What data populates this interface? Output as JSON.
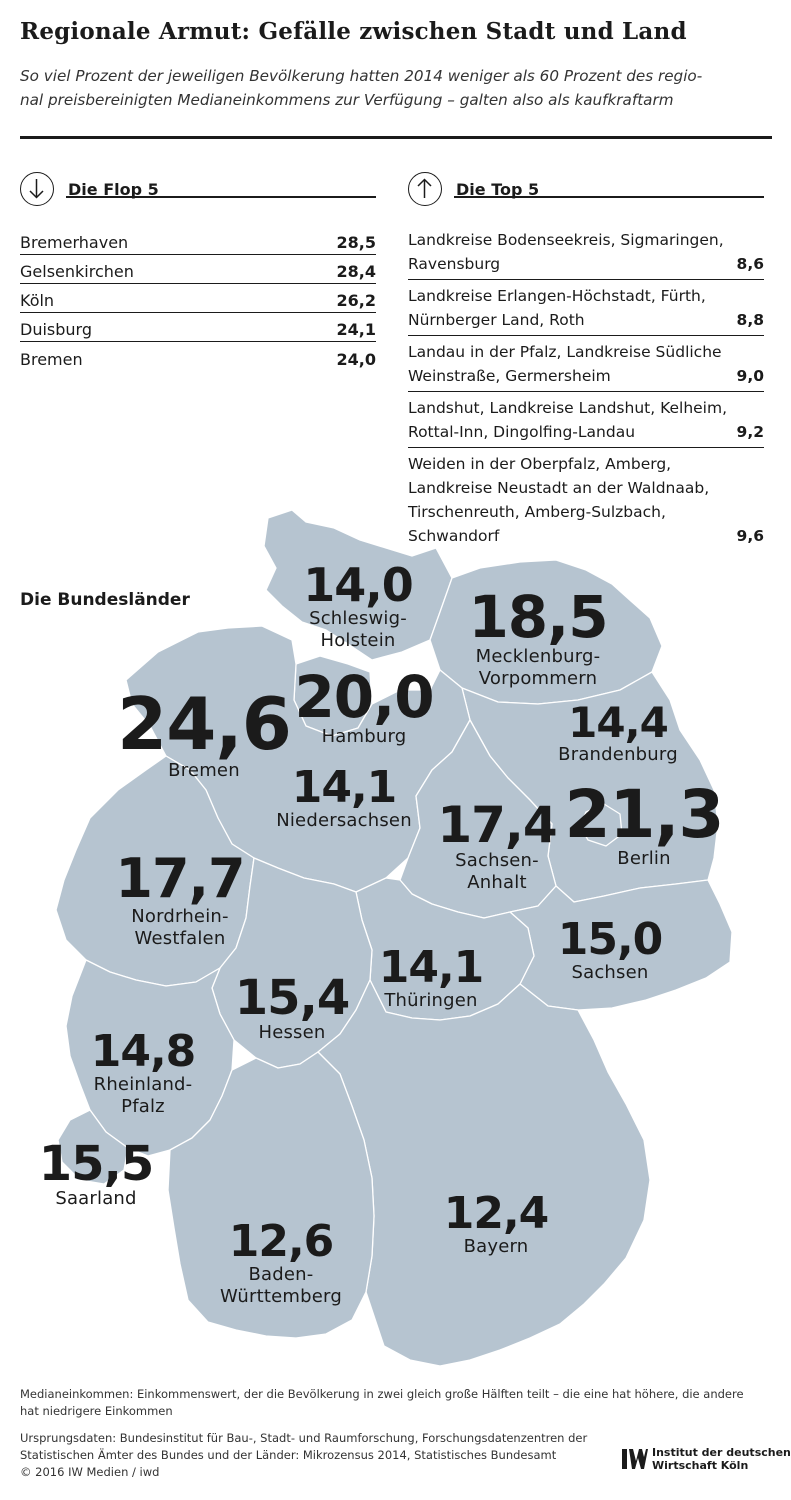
{
  "header": {
    "title": "Regionale Armut: Gefälle zwischen Stadt und Land",
    "subtitle_line1": "So viel Prozent der jeweiligen Bevölkerung hatten 2014 weniger als 60 Prozent des regio-",
    "subtitle_line2": "nal preisbereinigten Medianeinkommens zur Verfügung – galten also als kaufkraftarm"
  },
  "flop": {
    "title": "Die Flop 5",
    "icon": "arrow-down-icon",
    "rows": [
      {
        "name": "Bremerhaven",
        "value": "28,5"
      },
      {
        "name": "Gelsenkirchen",
        "value": "28,4"
      },
      {
        "name": "Köln",
        "value": "26,2"
      },
      {
        "name": "Duisburg",
        "value": "24,1"
      },
      {
        "name": "Bremen",
        "value": "24,0"
      }
    ]
  },
  "top": {
    "title": "Die Top 5",
    "icon": "arrow-up-icon",
    "rows": [
      {
        "name": "Landkreise Bodenseekreis, Sigmaringen, Ravensburg",
        "value": "8,6"
      },
      {
        "name": "Landkreise Erlangen-Höchstadt, Fürth, Nürnberger Land, Roth",
        "value": "8,8"
      },
      {
        "name": "Landau in der Pfalz, Landkreise Südliche Weinstraße, Germersheim",
        "value": "9,0"
      },
      {
        "name": "Landshut, Landkreise Landshut, Kelheim, Rottal-Inn, Dingolfing-Landau",
        "value": "9,2"
      },
      {
        "name": "Weiden in der Oberpfalz, Amberg, Landkreise Neustadt an der Waldnaab, Tirschenreuth, Amberg-Sulzbach, Schwandorf",
        "value": "9,6"
      }
    ]
  },
  "map": {
    "section_label": "Die Bundesländer",
    "fill_color": "#b6c4d0",
    "border_color": "#ffffff",
    "states": [
      {
        "id": "schleswig-holstein",
        "name_line1": "Schleswig-",
        "name_line2": "Holstein",
        "value": "14,0"
      },
      {
        "id": "mecklenburg-vorpommern",
        "name_line1": "Mecklenburg-",
        "name_line2": "Vorpommern",
        "value": "18,5"
      },
      {
        "id": "hamburg",
        "name_line1": "Hamburg",
        "name_line2": "",
        "value": "20,0"
      },
      {
        "id": "bremen",
        "name_line1": "Bremen",
        "name_line2": "",
        "value": "24,6"
      },
      {
        "id": "brandenburg",
        "name_line1": "Brandenburg",
        "name_line2": "",
        "value": "14,4"
      },
      {
        "id": "niedersachsen",
        "name_line1": "Niedersachsen",
        "name_line2": "",
        "value": "14,1"
      },
      {
        "id": "sachsen-anhalt",
        "name_line1": "Sachsen-",
        "name_line2": "Anhalt",
        "value": "17,4"
      },
      {
        "id": "berlin",
        "name_line1": "Berlin",
        "name_line2": "",
        "value": "21,3"
      },
      {
        "id": "nordrhein-westfalen",
        "name_line1": "Nordrhein-",
        "name_line2": "Westfalen",
        "value": "17,7"
      },
      {
        "id": "sachsen",
        "name_line1": "Sachsen",
        "name_line2": "",
        "value": "15,0"
      },
      {
        "id": "thueringen",
        "name_line1": "Thüringen",
        "name_line2": "",
        "value": "14,1"
      },
      {
        "id": "hessen",
        "name_line1": "Hessen",
        "name_line2": "",
        "value": "15,4"
      },
      {
        "id": "rheinland-pfalz",
        "name_line1": "Rheinland-",
        "name_line2": "Pfalz",
        "value": "14,8"
      },
      {
        "id": "saarland",
        "name_line1": "Saarland",
        "name_line2": "",
        "value": "15,5"
      },
      {
        "id": "bayern",
        "name_line1": "Bayern",
        "name_line2": "",
        "value": "12,4"
      },
      {
        "id": "baden-wuerttemberg",
        "name_line1": "Baden-",
        "name_line2": "Württemberg",
        "value": "12,6"
      }
    ]
  },
  "footer": {
    "note_line1": "Medianeinkommen: Einkommenswert, der die Bevölkerung in zwei gleich große Hälften teilt – die eine hat höhere, die andere",
    "note_line2": "hat niedrigere Einkommen",
    "source_line1": "Ursprungsdaten: Bundesinstitut für Bau-, Stadt- und Raumforschung, Forschungsdatenzentren der",
    "source_line2": "Statistischen Ämter des Bundes und der Länder: Mikrozensus 2014, Statistisches Bundesamt",
    "copyright": "© 2016 IW Medien / iwd",
    "logo_line1": "Institut der deutschen",
    "logo_line2": "Wirtschaft Köln",
    "logo_icon": "iw-logo-icon"
  }
}
